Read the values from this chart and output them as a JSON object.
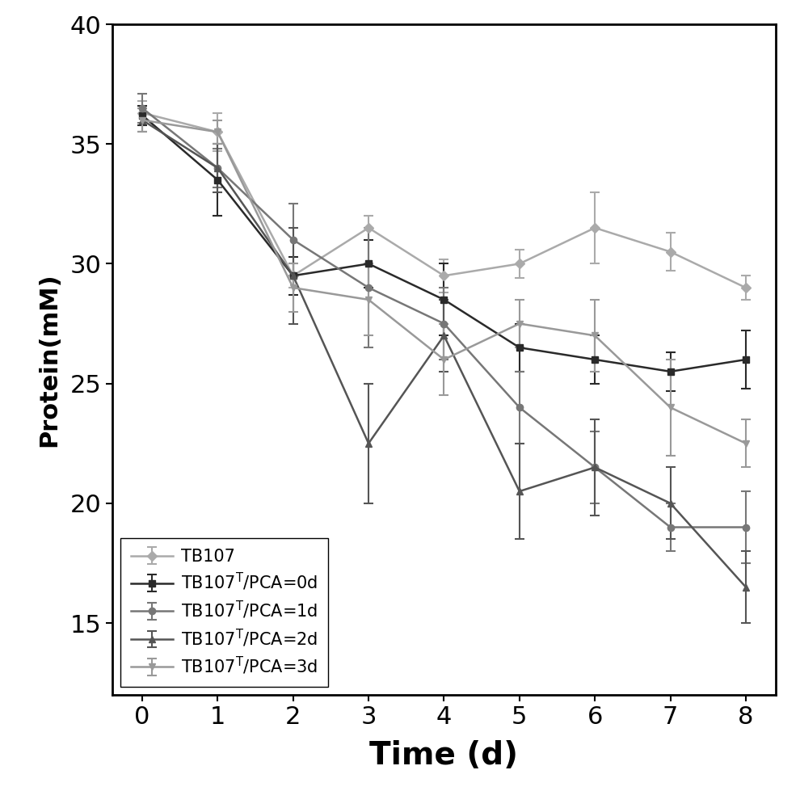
{
  "x": [
    0,
    1,
    2,
    3,
    4,
    5,
    6,
    7,
    8
  ],
  "series": {
    "TB107": {
      "y": [
        36.3,
        35.5,
        29.5,
        31.5,
        29.5,
        30.0,
        31.5,
        30.5,
        29.0
      ],
      "yerr": [
        0.5,
        0.8,
        0.5,
        0.5,
        0.7,
        0.6,
        1.5,
        0.8,
        0.5
      ],
      "color": "#aaaaaa",
      "marker": "D",
      "label": "TB107",
      "linewidth": 1.8,
      "markersize": 6
    },
    "TB107T_PCA0d": {
      "y": [
        36.2,
        33.5,
        29.5,
        30.0,
        28.5,
        26.5,
        26.0,
        25.5,
        26.0
      ],
      "yerr": [
        0.4,
        1.5,
        0.8,
        1.0,
        1.5,
        1.0,
        1.0,
        0.8,
        1.2
      ],
      "color": "#2a2a2a",
      "marker": "s",
      "label": "TB107$^\\mathrm{T}$/PCA=0d",
      "linewidth": 1.8,
      "markersize": 6
    },
    "TB107T_PCA1d": {
      "y": [
        36.5,
        34.0,
        31.0,
        29.0,
        27.5,
        24.0,
        21.5,
        19.0,
        19.0
      ],
      "yerr": [
        0.6,
        0.8,
        1.5,
        2.5,
        1.5,
        1.5,
        1.5,
        1.0,
        1.5
      ],
      "color": "#777777",
      "marker": "o",
      "label": "TB107$^\\mathrm{T}$/PCA=1d",
      "linewidth": 1.8,
      "markersize": 6
    },
    "TB107T_PCA2d": {
      "y": [
        36.0,
        34.0,
        29.5,
        22.5,
        27.0,
        20.5,
        21.5,
        20.0,
        16.5
      ],
      "yerr": [
        0.5,
        1.0,
        2.0,
        2.5,
        1.5,
        2.0,
        2.0,
        1.5,
        1.5
      ],
      "color": "#555555",
      "marker": "^",
      "label": "TB107$^\\mathrm{T}$/PCA=2d",
      "linewidth": 1.8,
      "markersize": 6
    },
    "TB107T_PCA3d": {
      "y": [
        36.0,
        35.5,
        29.0,
        28.5,
        26.0,
        27.5,
        27.0,
        24.0,
        22.5
      ],
      "yerr": [
        0.5,
        0.5,
        1.0,
        1.5,
        1.5,
        1.0,
        1.5,
        2.0,
        1.0
      ],
      "color": "#999999",
      "marker": "v",
      "label": "TB107$^\\mathrm{T}$/PCA=3d",
      "linewidth": 1.8,
      "markersize": 6
    }
  },
  "xlabel": "Time (d)",
  "ylabel": "Protein(mM)",
  "xlim": [
    -0.4,
    8.4
  ],
  "ylim": [
    12,
    40
  ],
  "yticks": [
    15,
    20,
    25,
    30,
    35,
    40
  ],
  "xticks": [
    0,
    1,
    2,
    3,
    4,
    5,
    6,
    7,
    8
  ],
  "xlabel_fontsize": 28,
  "ylabel_fontsize": 22,
  "tick_fontsize": 22,
  "legend_fontsize": 15,
  "figure_bgcolor": "#ffffff",
  "axes_bgcolor": "#ffffff",
  "tick_color": "#000000",
  "spine_color": "#000000",
  "spine_linewidth": 2.0,
  "capsize": 4
}
